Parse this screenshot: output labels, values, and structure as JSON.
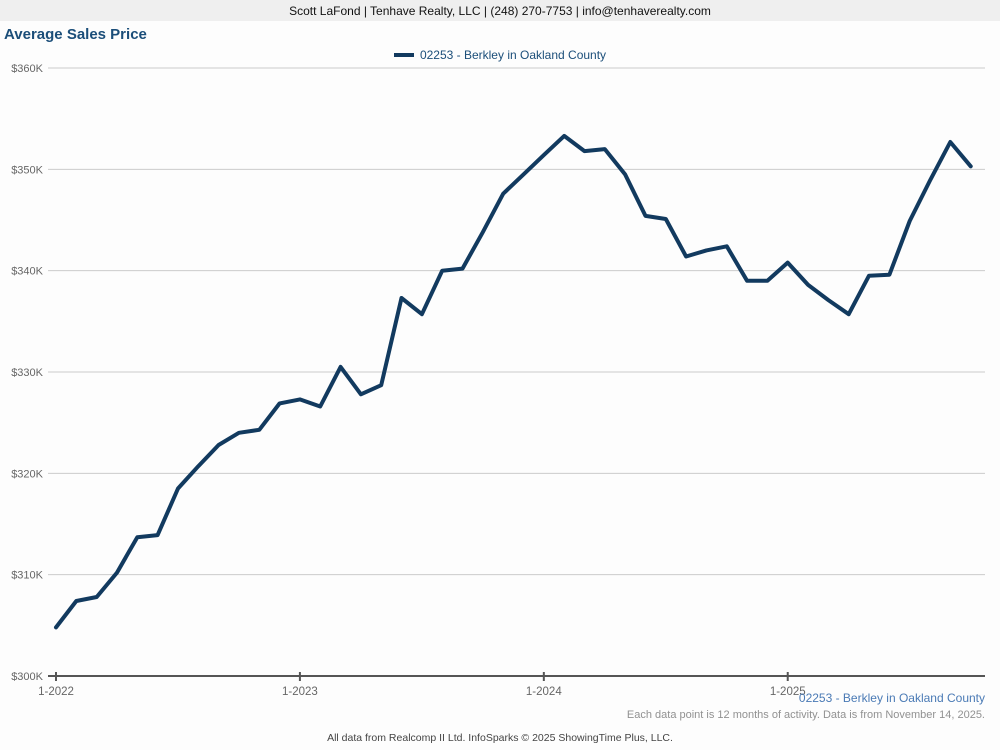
{
  "header": {
    "contact_line": "Scott LaFond | Tenhave Realty, LLC | (248) 270-7753 | info@tenhaverealty.com"
  },
  "title": "Average Sales Price",
  "legend": {
    "label": "02253 - Berkley in Oakland County"
  },
  "footer": {
    "series_label": "02253 - Berkley in Oakland County",
    "note": "Each data point is 12 months of activity. Data is from November 14, 2025.",
    "attribution": "All data from Realcomp II Ltd. InfoSparks © 2025 ShowingTime Plus, LLC."
  },
  "colors": {
    "line": "#123a5f",
    "title_text": "#1b4e79",
    "legend_text": "#1b4e79",
    "footer_series_text": "#4a7ab5",
    "grid": "#cccccc",
    "axis": "#555555",
    "tick_label": "#666666",
    "header_bg": "#efefef"
  },
  "chart_data": {
    "type": "line",
    "title": "Average Sales Price",
    "x": [
      "1-2022",
      "2-2022",
      "3-2022",
      "4-2022",
      "5-2022",
      "6-2022",
      "7-2022",
      "8-2022",
      "9-2022",
      "10-2022",
      "11-2022",
      "12-2022",
      "1-2023",
      "2-2023",
      "3-2023",
      "4-2023",
      "5-2023",
      "6-2023",
      "7-2023",
      "8-2023",
      "9-2023",
      "10-2023",
      "11-2023",
      "12-2023",
      "1-2024",
      "2-2024",
      "3-2024",
      "4-2024",
      "5-2024",
      "6-2024",
      "7-2024",
      "8-2024",
      "9-2024",
      "10-2024",
      "11-2024",
      "12-2024",
      "1-2025",
      "2-2025",
      "3-2025",
      "4-2025",
      "5-2025",
      "6-2025",
      "7-2025",
      "8-2025",
      "9-2025",
      "10-2025"
    ],
    "series": [
      {
        "name": "02253 - Berkley in Oakland County",
        "values": [
          304.8,
          307.4,
          307.8,
          310.2,
          313.7,
          313.9,
          318.5,
          320.7,
          322.8,
          324.0,
          324.3,
          326.9,
          327.3,
          326.6,
          330.5,
          327.8,
          328.7,
          337.3,
          335.7,
          340.0,
          340.2,
          343.8,
          347.6,
          349.5,
          351.4,
          353.3,
          351.8,
          352.0,
          349.5,
          345.4,
          345.1,
          341.4,
          342.0,
          342.4,
          339.0,
          339.0,
          340.8,
          338.6,
          337.1,
          335.7,
          339.5,
          339.6,
          344.9,
          348.9,
          352.7,
          350.3
        ]
      }
    ],
    "ylim": [
      300,
      360
    ],
    "yticks": [
      300,
      310,
      320,
      330,
      340,
      350,
      360
    ],
    "ytick_labels": [
      "$300K",
      "$310K",
      "$320K",
      "$330K",
      "$340K",
      "$350K",
      "$360K"
    ],
    "xticks": [
      {
        "label": "1-2022",
        "index": 0
      },
      {
        "label": "1-2023",
        "index": 12
      },
      {
        "label": "1-2024",
        "index": 24
      },
      {
        "label": "1-2025",
        "index": 36
      }
    ],
    "grid": "horizontal",
    "legend_position": "top-center"
  }
}
